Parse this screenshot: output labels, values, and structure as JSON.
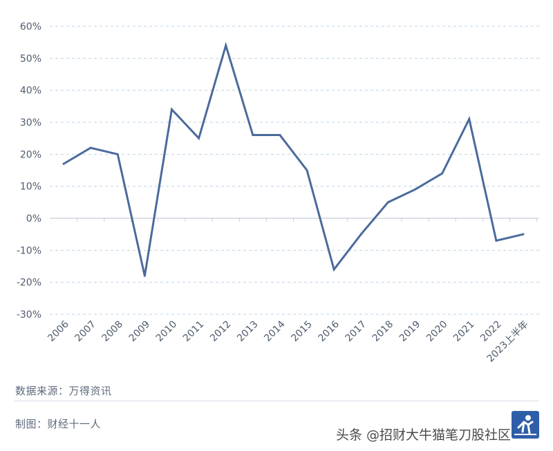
{
  "chart_data": {
    "type": "line",
    "categories": [
      "2006",
      "2007",
      "2008",
      "2009",
      "2010",
      "2011",
      "2012",
      "2013",
      "2014",
      "2015",
      "2016",
      "2017",
      "2018",
      "2019",
      "2020",
      "2021",
      "2022",
      "2023上半年"
    ],
    "series": [
      {
        "values": [
          17,
          22,
          20,
          -18,
          34,
          25,
          54,
          26,
          26,
          15,
          -16,
          -5,
          5,
          9,
          14,
          31,
          -7,
          -5
        ]
      }
    ],
    "y_ticks": [
      "60%",
      "50%",
      "40%",
      "30%",
      "20%",
      "10%",
      "0%",
      "-10%",
      "-20%",
      "-30%"
    ],
    "ylim": [
      -30,
      60
    ],
    "y_unit": "%",
    "grid": true,
    "line_color": "#4b6a9b"
  },
  "footer": {
    "source": "数据来源：万得资讯",
    "maker": "制图：财经十一人"
  },
  "watermark": {
    "text": "头条 @招财大牛猫笔刀股社区",
    "logo_icon": "runner-logo-icon"
  }
}
